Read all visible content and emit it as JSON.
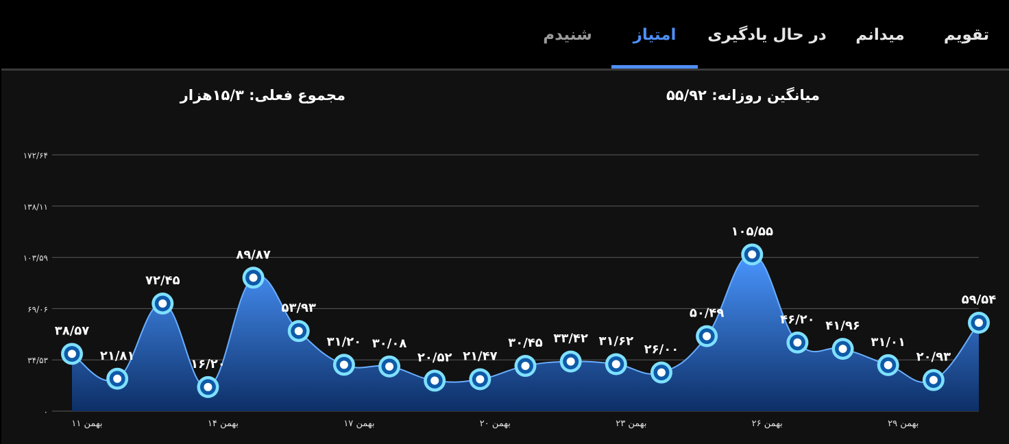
{
  "tabs": [
    {
      "label": "تقویم",
      "state": "normal"
    },
    {
      "label": "میدانم",
      "state": "normal"
    },
    {
      "label": "در حال یادگیری",
      "state": "normal"
    },
    {
      "label": "امتیاز",
      "state": "active"
    },
    {
      "label": "شنیدم",
      "state": "muted"
    }
  ],
  "stats": {
    "daily_average": "میانگین روزانه: ۵۵/۹۲",
    "current_total": "مجموع فعلی: ۱۵/۳هزار"
  },
  "colors": {
    "accent": "#4f8ef5",
    "area_top": "#4a96ff",
    "area_bottom": "#0d2f66",
    "point_ring": "#7fe0ff",
    "background": "#111111"
  },
  "chart_data": {
    "type": "area",
    "smooth": true,
    "grid": "horizontal",
    "ylim": [
      0,
      172.64
    ],
    "y_ticks": [
      {
        "value": 0,
        "label": "۰"
      },
      {
        "value": 34.53,
        "label": "۳۴/۵۳"
      },
      {
        "value": 69.06,
        "label": "۶۹/۰۶"
      },
      {
        "value": 103.59,
        "label": "۱۰۳/۵۹"
      },
      {
        "value": 138.11,
        "label": "۱۳۸/۱۱"
      },
      {
        "value": 172.64,
        "label": "۱۷۲/۶۴"
      }
    ],
    "x_ticks": [
      {
        "index": 0,
        "label": "۱۱ بهمن"
      },
      {
        "index": 3,
        "label": "۱۴ بهمن"
      },
      {
        "index": 6,
        "label": "۱۷ بهمن"
      },
      {
        "index": 9,
        "label": "۲۰ بهمن"
      },
      {
        "index": 12,
        "label": "۲۳ بهمن"
      },
      {
        "index": 15,
        "label": "۲۶ بهمن"
      },
      {
        "index": 18,
        "label": "۲۹ بهمن"
      }
    ],
    "values": [
      38.57,
      21.81,
      72.45,
      16.2,
      89.87,
      53.93,
      31.2,
      30.08,
      20.52,
      21.47,
      30.45,
      33.42,
      31.62,
      26.0,
      50.49,
      105.55,
      46.2,
      41.96,
      31.01,
      20.93,
      59.54
    ],
    "labels": [
      "۳۸/۵۷",
      "۲۱/۸۱",
      "۷۲/۴۵",
      "۱۶/۲۰",
      "۸۹/۸۷",
      "۵۳/۹۳",
      "۳۱/۲۰",
      "۳۰/۰۸",
      "۲۰/۵۲",
      "۲۱/۴۷",
      "۳۰/۴۵",
      "۳۳/۴۲",
      "۳۱/۶۲",
      "۲۶/۰۰",
      "۵۰/۴۹",
      "۱۰۵/۵۵",
      "۴۶/۲۰",
      "۴۱/۹۶",
      "۳۱/۰۱",
      "۲۰/۹۳",
      "۵۹/۵۴"
    ]
  }
}
